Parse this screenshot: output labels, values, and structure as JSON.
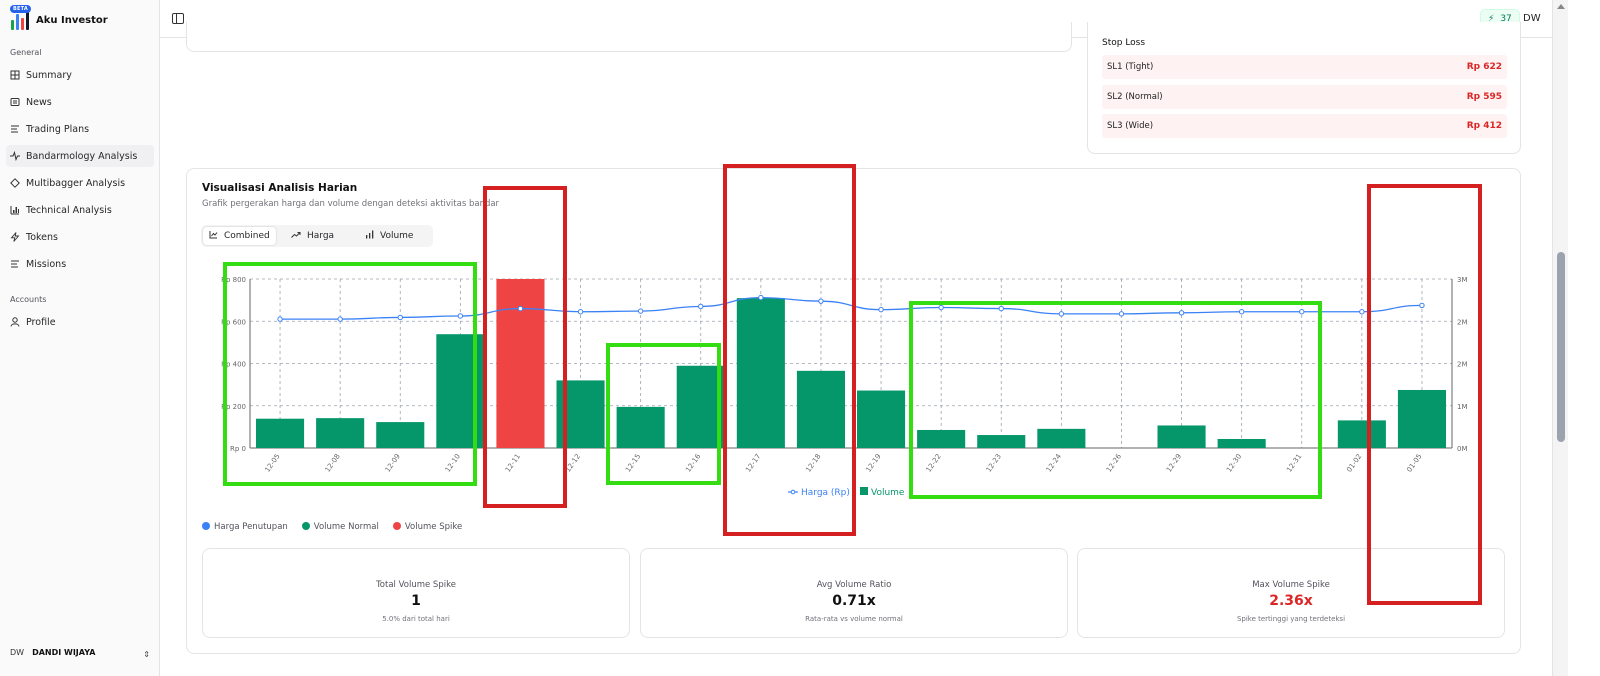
{
  "brand": {
    "name": "Aku Investor",
    "badge": "BETA"
  },
  "sidebar": {
    "section_general": "General",
    "items": [
      {
        "label": "Summary",
        "icon": "summary-icon"
      },
      {
        "label": "News",
        "icon": "news-icon"
      },
      {
        "label": "Trading Plans",
        "icon": "list-icon"
      },
      {
        "label": "Bandarmology Analysis",
        "icon": "activity-icon"
      },
      {
        "label": "Multibagger Analysis",
        "icon": "diamond-icon"
      },
      {
        "label": "Technical Analysis",
        "icon": "bar-chart-icon"
      },
      {
        "label": "Tokens",
        "icon": "bolt-icon"
      },
      {
        "label": "Missions",
        "icon": "list-icon"
      }
    ],
    "section_accounts": "Accounts",
    "account_items": [
      {
        "label": "Profile",
        "icon": "user-icon"
      }
    ],
    "user": {
      "initials": "DW",
      "name": "DANDI WIJAYA"
    }
  },
  "topbar": {
    "tokens": "37",
    "avatar": "DW"
  },
  "stop_loss": {
    "title": "Stop Loss",
    "rows": [
      {
        "label": "SL1 (Tight)",
        "value": "Rp 622"
      },
      {
        "label": "SL2 (Normal)",
        "value": "Rp 595"
      },
      {
        "label": "SL3 (Wide)",
        "value": "Rp 412"
      }
    ]
  },
  "viz": {
    "title": "Visualisasi Analisis Harian",
    "subtitle": "Grafik pergerakan harga dan volume dengan deteksi aktivitas bandar",
    "tabs": [
      "Combined",
      "Harga",
      "Volume"
    ],
    "legend": [
      "Harga Penutupan",
      "Volume Normal",
      "Volume Spike"
    ],
    "colors": {
      "price": "#3b82f6",
      "normal": "#059669",
      "spike": "#ef4444"
    }
  },
  "chart_data": {
    "type": "bar",
    "categories": [
      "12-05",
      "12-08",
      "12-09",
      "12-10",
      "12-11",
      "12-12",
      "12-15",
      "12-16",
      "12-17",
      "12-18",
      "12-19",
      "12-22",
      "12-23",
      "12-24",
      "12-26",
      "12-29",
      "12-30",
      "12-31",
      "01-02",
      "01-05"
    ],
    "series": [
      {
        "name": "Harga (Rp)",
        "type": "line",
        "axis": "left",
        "values": [
          610,
          610,
          618,
          625,
          660,
          645,
          648,
          670,
          712,
          695,
          655,
          665,
          660,
          635,
          635,
          640,
          645,
          645,
          645,
          675
        ]
      },
      {
        "name": "Volume",
        "type": "bar",
        "axis": "right",
        "values": [
          0.52,
          0.53,
          0.46,
          2.02,
          3.0,
          1.2,
          0.73,
          1.46,
          2.66,
          1.37,
          1.02,
          0.32,
          0.23,
          0.34,
          0,
          0.4,
          0.16,
          0,
          0.49,
          1.03
        ]
      }
    ],
    "spike_index": [
      4
    ],
    "y_left": {
      "range": [
        0,
        800
      ],
      "ticks": [
        "Rp 0",
        "Rp 200",
        "Rp 400",
        "Rp 600",
        "Rp 800"
      ]
    },
    "y_right": {
      "range": [
        0,
        3
      ],
      "ticks": [
        "0M",
        "1M",
        "2M",
        "2M",
        "3M"
      ]
    },
    "grid": true,
    "legend_partial": "Harga (Rp)",
    "legend_partial2": "Volume"
  },
  "stats": [
    {
      "label": "Total Volume Spike",
      "value": "1",
      "note": "5.0% dari total hari"
    },
    {
      "label": "Avg Volume Ratio",
      "value": "0.71x",
      "note": "Rata-rata vs volume normal"
    },
    {
      "label": "Max Volume Spike",
      "value": "2.36x",
      "note": "Spike tertinggi yang terdeteksi"
    }
  ],
  "overlays": {
    "green": "#33dd11",
    "red": "#d42020"
  }
}
